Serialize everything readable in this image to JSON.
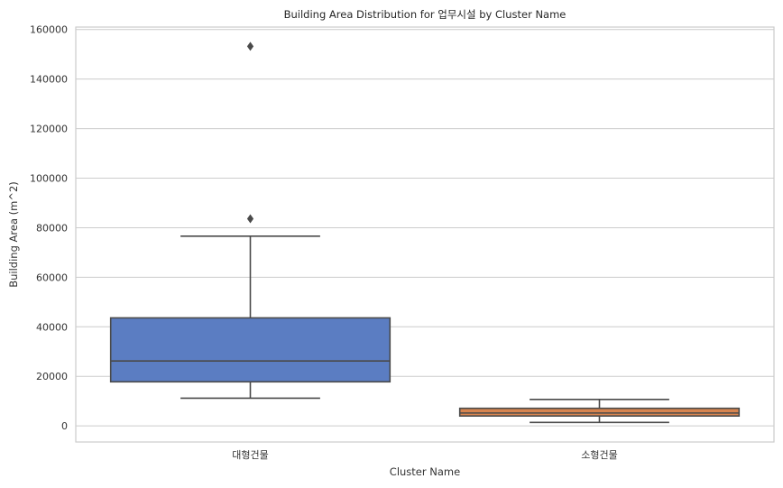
{
  "chart_data": {
    "type": "box",
    "title": "Building Area Distribution for 업무시설 by Cluster Name",
    "xlabel": "Cluster Name",
    "ylabel": "Building Area (m^2)",
    "ylim": [
      -6500,
      161000
    ],
    "yticks": [
      0,
      20000,
      40000,
      60000,
      80000,
      100000,
      120000,
      140000,
      160000
    ],
    "ytick_labels": [
      "0",
      "20000",
      "40000",
      "60000",
      "80000",
      "100000",
      "120000",
      "140000",
      "160000"
    ],
    "grid": true,
    "categories": [
      "대형건물",
      "소형건물"
    ],
    "boxes": [
      {
        "name": "대형건물",
        "color": "#5b7dc2",
        "whisker_low": 11200,
        "q1": 17800,
        "median": 26200,
        "q3": 43600,
        "whisker_high": 76600,
        "outliers": [
          83600,
          153200
        ]
      },
      {
        "name": "소형건물",
        "color": "#d7844f",
        "whisker_low": 1400,
        "q1": 4000,
        "median": 5200,
        "q3": 7100,
        "whisker_high": 10700,
        "outliers": []
      }
    ]
  }
}
